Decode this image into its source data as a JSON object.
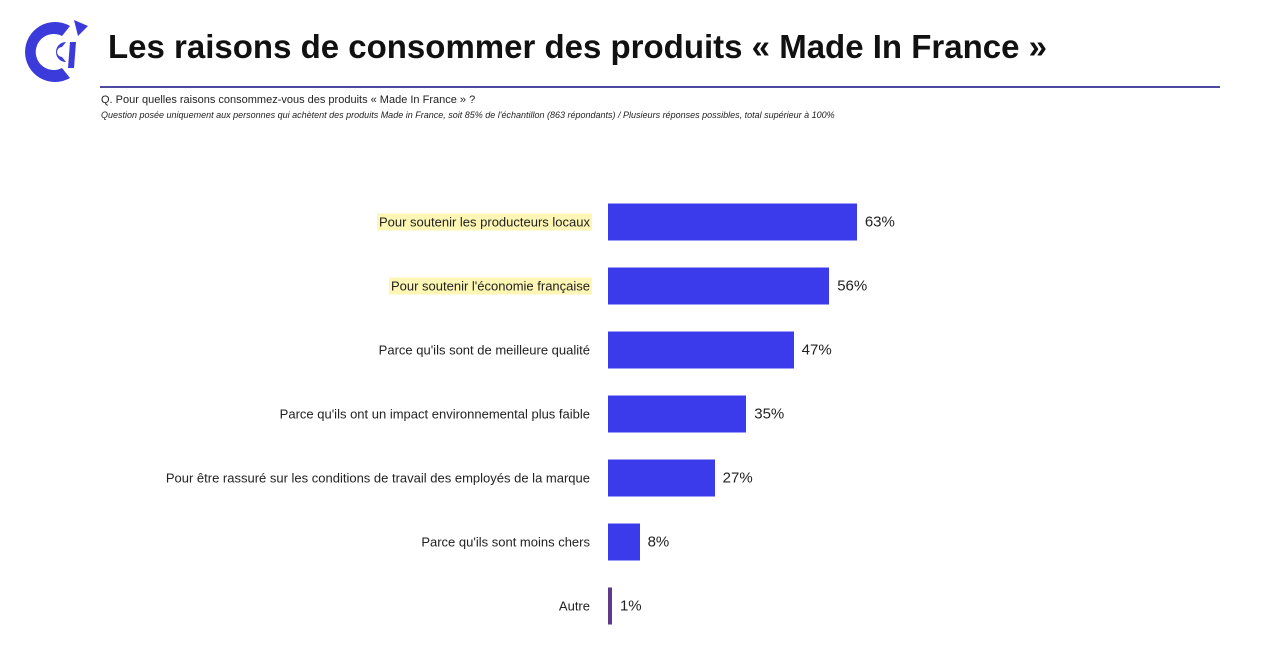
{
  "header": {
    "logo_text": "CCI",
    "title": "Les raisons de consommer des produits « Made In France »",
    "question": "Q. Pour quelles raisons consommez-vous des produits « Made In France » ?",
    "note": "Question posée uniquement aux personnes qui achètent des produits Made in France, soit 85% de l'échantillon (863 répondants) / Plusieurs réponses possibles, total supérieur à 100%"
  },
  "colors": {
    "bar": "#3b3bec",
    "other_bar": "#5e3a8c",
    "highlight": "#fdf6b4",
    "brand": "#3b3bdb"
  },
  "chart_data": {
    "type": "bar",
    "orientation": "horizontal",
    "categories": [
      "Pour soutenir les producteurs locaux",
      "Pour soutenir l'économie française",
      "Parce qu'ils sont de meilleure qualité",
      "Parce qu'ils ont un impact environnemental plus faible",
      "Pour être rassuré sur les conditions de travail des employés de la marque",
      "Parce qu'ils sont moins chers",
      "Autre"
    ],
    "values": [
      63,
      56,
      47,
      35,
      27,
      8,
      1
    ],
    "labels": [
      "63%",
      "56%",
      "47%",
      "35%",
      "27%",
      "8%",
      "1%"
    ],
    "highlighted": [
      true,
      true,
      false,
      false,
      false,
      false,
      false
    ],
    "unit": "%",
    "grid": false,
    "axes_visible": false
  }
}
